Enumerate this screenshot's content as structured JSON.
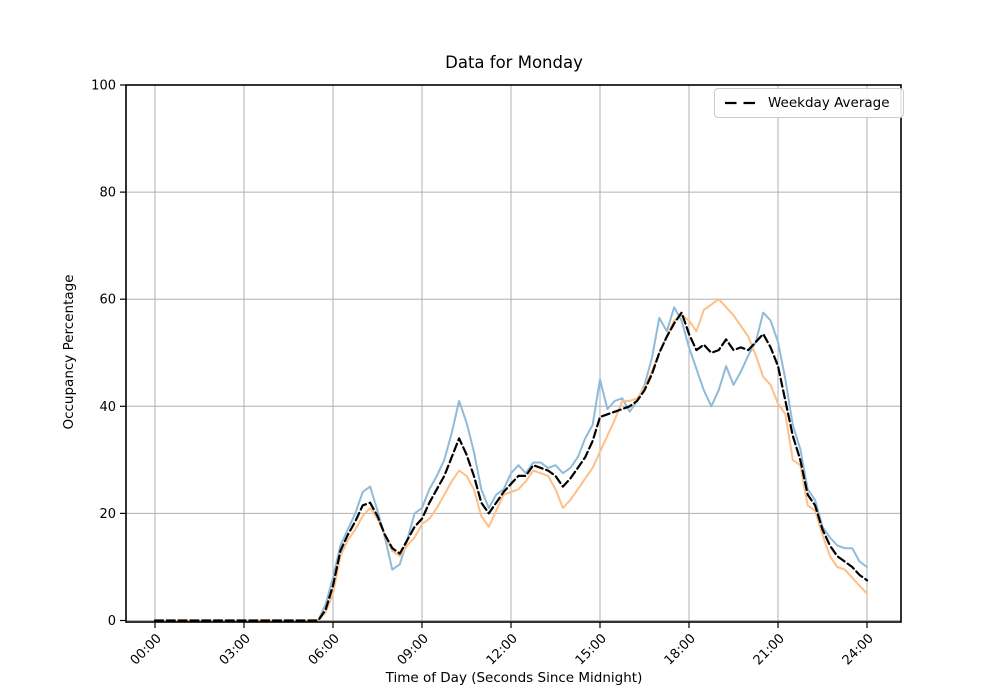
{
  "figure": {
    "background": "#ffffff"
  },
  "chart_data": {
    "type": "line",
    "title": "Data for Monday",
    "xlabel": "Time of Day (Seconds Since Midnight)",
    "ylabel": "Occupancy Percentage",
    "ylim": [
      0,
      100
    ],
    "y_ticks": [
      0,
      20,
      40,
      60,
      80,
      100
    ],
    "x_ticks": [
      {
        "label": "00:00",
        "hour": 0
      },
      {
        "label": "03:00",
        "hour": 3
      },
      {
        "label": "06:00",
        "hour": 6
      },
      {
        "label": "09:00",
        "hour": 9
      },
      {
        "label": "12:00",
        "hour": 12
      },
      {
        "label": "15:00",
        "hour": 15
      },
      {
        "label": "18:00",
        "hour": 18
      },
      {
        "label": "21:00",
        "hour": 21
      },
      {
        "label": "24:00",
        "hour": 24
      }
    ],
    "grid": true,
    "grid_color": "#b0b0b0",
    "legend": {
      "position": "upper-right",
      "label": "Weekday Average"
    },
    "x_start": "00:00",
    "x_end": "24:00",
    "sample_interval_minutes": 15,
    "series": [
      {
        "id": "blue-line",
        "legend_label": null,
        "color": "#8fbbd9",
        "line_style": "solid",
        "line_width": 2,
        "values": [
          0,
          0,
          0,
          0,
          0,
          0,
          0,
          0,
          0,
          0,
          0,
          0,
          0,
          0,
          0,
          0,
          0,
          0,
          0,
          0,
          0,
          0,
          0,
          3,
          8,
          14,
          17,
          20,
          24,
          25,
          20.5,
          15.5,
          9.5,
          10.5,
          15,
          20,
          21,
          24.5,
          27,
          30,
          35,
          41,
          37,
          31.5,
          24.5,
          21,
          23.5,
          24.5,
          27.5,
          29,
          27.5,
          29.5,
          29.5,
          28.5,
          29,
          27.5,
          28.5,
          30.5,
          34,
          36.5,
          45,
          39.5,
          41,
          41.5,
          39,
          41,
          44,
          49,
          56.5,
          54,
          58.5,
          56,
          51,
          47,
          43,
          40,
          43,
          47.5,
          44,
          46.5,
          49.5,
          52,
          57.5,
          56,
          52,
          45,
          36.5,
          32,
          24.5,
          22.5,
          17.5,
          15.5,
          14,
          13.5,
          13.5,
          11,
          10
        ]
      },
      {
        "id": "orange-line",
        "legend_label": null,
        "color": "#ffbf86",
        "line_style": "solid",
        "line_width": 2,
        "values": [
          0,
          0,
          0,
          0,
          0,
          0,
          0,
          0,
          0,
          0,
          0,
          0,
          0,
          0,
          0,
          0,
          0,
          0,
          0,
          0,
          0,
          0,
          0,
          1.5,
          5,
          12,
          15,
          17,
          19.5,
          21,
          19,
          16,
          13,
          12,
          14,
          15.5,
          18,
          19,
          21,
          23.5,
          26,
          28,
          27,
          24.5,
          19.5,
          17.5,
          20.5,
          23.5,
          24,
          24.5,
          26,
          28,
          27.5,
          27,
          24.5,
          21,
          22.5,
          24.5,
          26.5,
          28.5,
          31.5,
          34.5,
          37.5,
          41,
          41,
          41.5,
          43.5,
          46.5,
          50,
          53,
          56,
          57,
          56,
          54,
          58,
          59,
          60,
          58.5,
          57,
          55,
          53,
          49.5,
          45.5,
          44,
          40.5,
          38.5,
          30,
          29,
          21.5,
          20.5,
          16,
          12,
          10,
          9.5,
          8,
          6.5,
          5
        ]
      },
      {
        "id": "weekday-average",
        "legend_label": "Weekday Average",
        "color": "#000000",
        "line_style": "dashed",
        "line_width": 2.2,
        "values": [
          0,
          0,
          0,
          0,
          0,
          0,
          0,
          0,
          0,
          0,
          0,
          0,
          0,
          0,
          0,
          0,
          0,
          0,
          0,
          0,
          0,
          0,
          0,
          2,
          6.5,
          13,
          16,
          18.5,
          21.5,
          22,
          19.5,
          16,
          13.5,
          12.5,
          15,
          17.5,
          19,
          22,
          24.5,
          27,
          30.5,
          34,
          31,
          27,
          22,
          20,
          22,
          24,
          25.5,
          27,
          27,
          29,
          28.5,
          28,
          27,
          25,
          26.5,
          28.5,
          30.5,
          33.5,
          38,
          38.5,
          39,
          39.5,
          40,
          41,
          43,
          46,
          50,
          53,
          55.5,
          57.5,
          53.5,
          50.5,
          51.5,
          50,
          50.5,
          52.5,
          50.5,
          51,
          50.5,
          52,
          53.5,
          51,
          47.5,
          41,
          34.5,
          30,
          23.5,
          21.5,
          17,
          14,
          12,
          11,
          10,
          8.5,
          7.5
        ]
      }
    ]
  }
}
